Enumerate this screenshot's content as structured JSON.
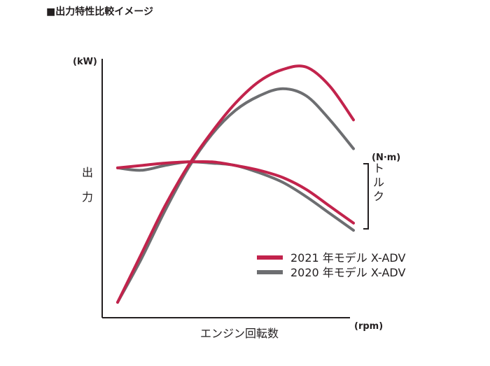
{
  "chart_data": {
    "type": "line",
    "title": "■出力特性比較イメージ",
    "xlabel": "エンジン回転数",
    "x_unit": "(rpm)",
    "ylabel_left": [
      "出",
      "力"
    ],
    "y_unit_left": "(kW)",
    "ylabel_right": "トルク",
    "y_unit_right": "(N·m)",
    "ticks": "none",
    "grid": false,
    "legend_position": "bottom-right",
    "x_range": [
      0,
      100
    ],
    "y_range": [
      0,
      100
    ],
    "series": [
      {
        "name": "2021 年モデル X-ADV",
        "color": "#c2234c",
        "power": {
          "x": [
            0,
            10,
            20,
            30,
            40,
            50,
            60,
            70,
            80,
            90,
            100
          ],
          "y": [
            0,
            20,
            40,
            57,
            71,
            83,
            92,
            97,
            98,
            90,
            76
          ]
        },
        "torque": {
          "x": [
            0,
            10,
            20,
            30,
            40,
            50,
            60,
            70,
            80,
            90,
            100
          ],
          "y": [
            56,
            57,
            58,
            58.5,
            58.5,
            57,
            55,
            52,
            47,
            40,
            33
          ]
        }
      },
      {
        "name": "2020 年モデル X-ADV",
        "color": "#6d6e71",
        "power": {
          "x": [
            0,
            10,
            20,
            30,
            40,
            50,
            60,
            70,
            80,
            90,
            100
          ],
          "y": [
            0,
            18,
            38,
            56,
            70,
            80,
            86,
            89,
            86,
            76,
            64
          ]
        },
        "torque": {
          "x": [
            0,
            10,
            20,
            30,
            40,
            50,
            60,
            70,
            80,
            90,
            100
          ],
          "y": [
            56,
            55,
            57,
            58.5,
            58,
            57,
            54,
            50,
            44,
            37,
            30
          ]
        }
      }
    ]
  }
}
